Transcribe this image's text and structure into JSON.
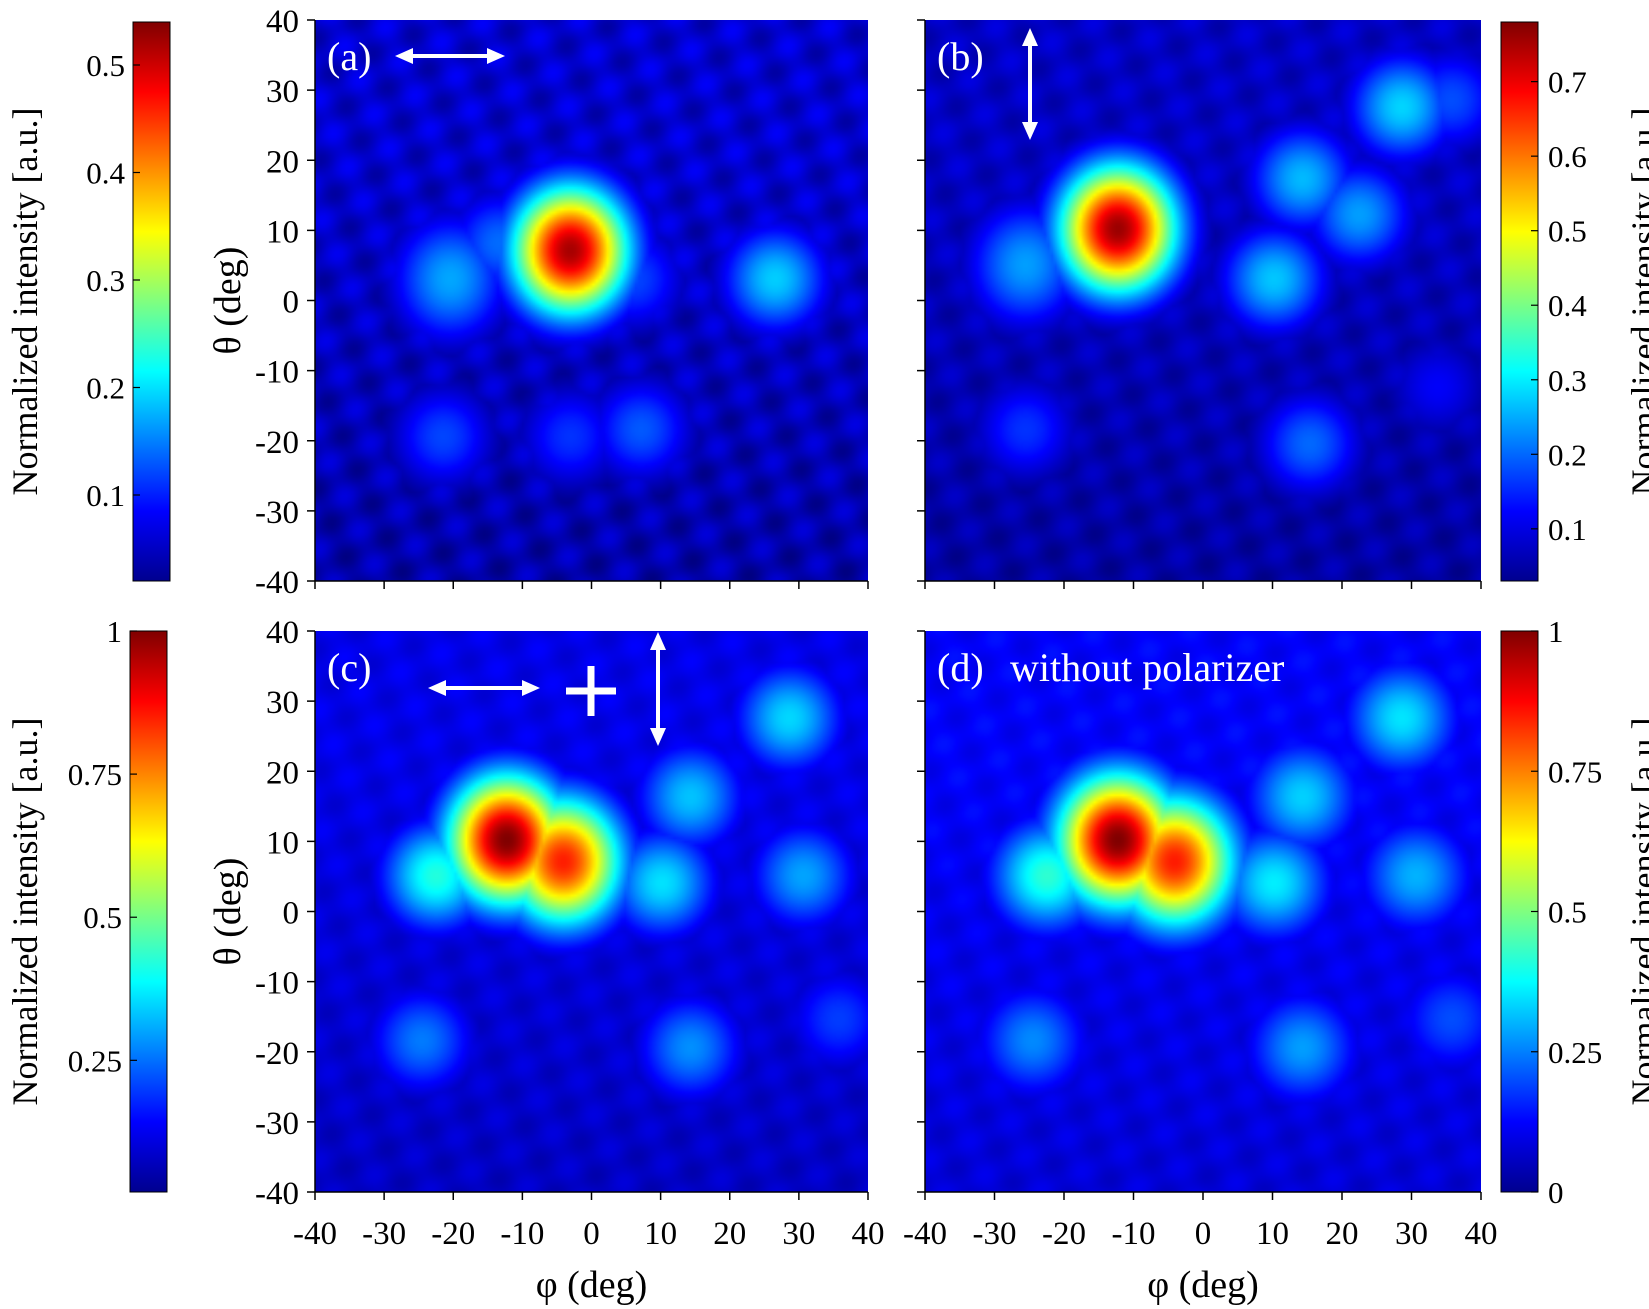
{
  "chart_data": [
    {
      "type": "heatmap",
      "panel_label": "(a)",
      "annotation": "",
      "polarization": "horizontal",
      "xlabel": "",
      "ylabel": "θ (deg)",
      "xlim": [
        -40,
        40
      ],
      "ylim": [
        -40,
        40
      ],
      "x_ticks": [],
      "y_ticks": [
        "40",
        "30",
        "20",
        "10",
        "0",
        "-10",
        "-20",
        "-30",
        "-40"
      ],
      "colorbar": {
        "position": "left",
        "label": "Normalized intensity [a.u.]",
        "min": 0.02,
        "max": 0.54,
        "tick_values": [
          0.1,
          0.2,
          0.3,
          0.4,
          0.5
        ],
        "ticks": [
          "0.1",
          "0.2",
          "0.3",
          "0.4",
          "0.5"
        ]
      },
      "peaks": [
        {
          "phi": -3,
          "theta": 7,
          "value": 0.52
        },
        {
          "phi": -20,
          "theta": 3,
          "value": 0.17
        },
        {
          "phi": 26,
          "theta": 3,
          "value": 0.19
        },
        {
          "phi": -13,
          "theta": 8,
          "value": 0.14
        },
        {
          "phi": 6,
          "theta": 3,
          "value": 0.12
        },
        {
          "phi": -21,
          "theta": -19,
          "value": 0.12
        },
        {
          "phi": -3,
          "theta": -19,
          "value": 0.11
        },
        {
          "phi": 7,
          "theta": -18,
          "value": 0.13
        }
      ],
      "background": 0.06
    },
    {
      "type": "heatmap",
      "panel_label": "(b)",
      "annotation": "",
      "polarization": "vertical",
      "xlabel": "",
      "ylabel": "",
      "xlim": [
        -40,
        40
      ],
      "ylim": [
        -40,
        40
      ],
      "x_ticks": [],
      "y_ticks": [],
      "colorbar": {
        "position": "right",
        "label": "Normalized intensity [a.u.]",
        "min": 0.03,
        "max": 0.78,
        "tick_values": [
          0.1,
          0.2,
          0.3,
          0.4,
          0.5,
          0.6,
          0.7
        ],
        "ticks": [
          "0.1",
          "0.2",
          "0.3",
          "0.4",
          "0.5",
          "0.6",
          "0.7"
        ]
      },
      "peaks": [
        {
          "phi": -12,
          "theta": 10,
          "value": 0.76
        },
        {
          "phi": -25,
          "theta": 5,
          "value": 0.24
        },
        {
          "phi": 10,
          "theta": 3,
          "value": 0.27
        },
        {
          "phi": 14,
          "theta": 17,
          "value": 0.26
        },
        {
          "phi": 22,
          "theta": 12,
          "value": 0.24
        },
        {
          "phi": 28,
          "theta": 27,
          "value": 0.28
        },
        {
          "phi": 35,
          "theta": 28,
          "value": 0.18
        },
        {
          "phi": -25,
          "theta": -18,
          "value": 0.16
        },
        {
          "phi": 15,
          "theta": -20,
          "value": 0.2
        },
        {
          "phi": 33,
          "theta": -12,
          "value": 0.12
        }
      ],
      "background": 0.08
    },
    {
      "type": "heatmap",
      "panel_label": "(c)",
      "annotation": "",
      "polarization": "horizontal + vertical",
      "xlabel": "φ (deg)",
      "ylabel": "θ (deg)",
      "xlim": [
        -40,
        40
      ],
      "ylim": [
        -40,
        40
      ],
      "x_ticks": [
        "-40",
        "-30",
        "-20",
        "-10",
        "0",
        "10",
        "20",
        "30",
        "40"
      ],
      "y_ticks": [
        "40",
        "30",
        "20",
        "10",
        "0",
        "-10",
        "-20",
        "-30",
        "-40"
      ],
      "colorbar": {
        "position": "left",
        "label": "Normalized intensity [a.u.]",
        "min": 0.02,
        "max": 1.0,
        "tick_values": [
          0.25,
          0.5,
          0.75,
          1
        ],
        "ticks": [
          "0.25",
          "0.5",
          "0.75",
          "1"
        ]
      },
      "peaks": [
        {
          "phi": -12,
          "theta": 10,
          "value": 1.0
        },
        {
          "phi": -4,
          "theta": 7,
          "value": 0.85
        },
        {
          "phi": -22,
          "theta": 5,
          "value": 0.42
        },
        {
          "phi": 10,
          "theta": 4,
          "value": 0.36
        },
        {
          "phi": 14,
          "theta": 16,
          "value": 0.33
        },
        {
          "phi": 28,
          "theta": 27,
          "value": 0.35
        },
        {
          "phi": 30,
          "theta": 5,
          "value": 0.3
        },
        {
          "phi": -24,
          "theta": -18,
          "value": 0.26
        },
        {
          "phi": 14,
          "theta": -19,
          "value": 0.28
        },
        {
          "phi": 35,
          "theta": -15,
          "value": 0.2
        }
      ],
      "background": 0.12
    },
    {
      "type": "heatmap",
      "panel_label": "(d)",
      "annotation": "without polarizer",
      "polarization": "none",
      "xlabel": "φ (deg)",
      "ylabel": "",
      "xlim": [
        -40,
        40
      ],
      "ylim": [
        -40,
        40
      ],
      "x_ticks": [
        "-40",
        "-30",
        "-20",
        "-10",
        "0",
        "10",
        "20",
        "30",
        "40"
      ],
      "y_ticks": [],
      "colorbar": {
        "position": "right",
        "label": "Normalized intensity [a.u.]",
        "min": 0,
        "max": 1.0,
        "tick_values": [
          0,
          0.25,
          0.5,
          0.75,
          1
        ],
        "ticks": [
          "0",
          "0.25",
          "0.5",
          "0.75",
          "1"
        ]
      },
      "peaks": [
        {
          "phi": -12,
          "theta": 10,
          "value": 1.0
        },
        {
          "phi": -4,
          "theta": 7,
          "value": 0.85
        },
        {
          "phi": -22,
          "theta": 5,
          "value": 0.42
        },
        {
          "phi": 10,
          "theta": 4,
          "value": 0.36
        },
        {
          "phi": 14,
          "theta": 16,
          "value": 0.33
        },
        {
          "phi": 28,
          "theta": 27,
          "value": 0.35
        },
        {
          "phi": 30,
          "theta": 5,
          "value": 0.3
        },
        {
          "phi": -24,
          "theta": -18,
          "value": 0.26
        },
        {
          "phi": 14,
          "theta": -19,
          "value": 0.28
        },
        {
          "phi": 35,
          "theta": -15,
          "value": 0.2
        }
      ],
      "background": 0.12
    }
  ]
}
